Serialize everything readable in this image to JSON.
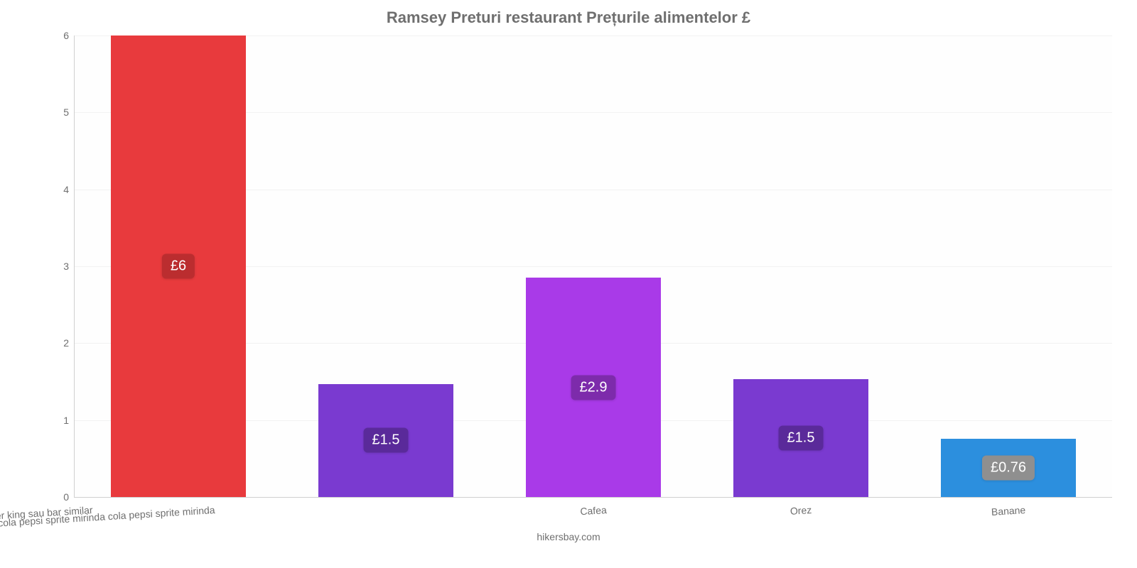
{
  "chart": {
    "type": "bar",
    "title": "Ramsey Preturi restaurant Prețurile alimentelor £",
    "title_fontsize": 22,
    "title_color": "#6f6f6f",
    "background_color": "#ffffff",
    "plot_background": "#fefefe",
    "grid_color": "#f2f2f2",
    "axis_line_color": "#d0d0d0",
    "credit": "hikersbay.com",
    "credit_fontsize": 14,
    "credit_color": "#6f6f6f",
    "y": {
      "min": 0,
      "max": 6,
      "tick_step": 1,
      "tick_fontsize": 14,
      "tick_color": "#6f6f6f"
    },
    "x": {
      "tick_fontsize": 14,
      "tick_color": "#6f6f6f",
      "rotation_deg": -3.5
    },
    "bar_width_ratio": 0.65,
    "categories": [
      "mac burger king sau bar similar",
      "cola pepsi sprite mirinda cola pepsi sprite mirinda",
      "Cafea",
      "Orez",
      "Banane"
    ],
    "values": [
      6,
      1.47,
      2.85,
      1.53,
      0.76
    ],
    "bar_colors": [
      "#e83a3d",
      "#7a3ad0",
      "#a93ae8",
      "#7a3ad0",
      "#2c8fde"
    ],
    "data_labels": [
      "£6",
      "£1.5",
      "£2.9",
      "£1.5",
      "£0.76"
    ],
    "data_label_bg": [
      "#bb2d2f",
      "#5a2a9a",
      "#7d2bab",
      "#5a2a9a",
      "#8f8f8f"
    ],
    "data_label_fontsize": 20,
    "data_label_color": "#ffffff"
  }
}
